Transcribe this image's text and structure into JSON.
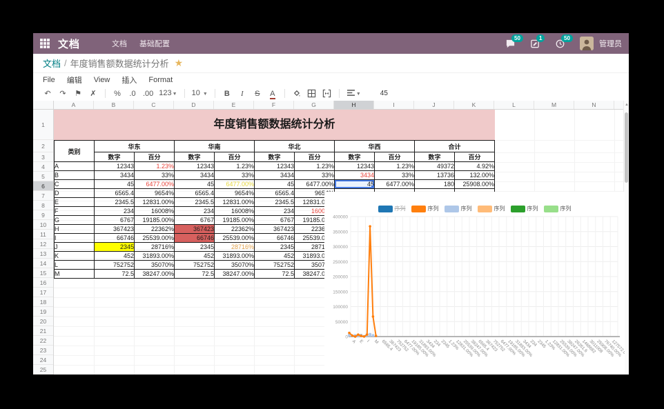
{
  "app": {
    "name": "文档",
    "menu": [
      "文档",
      "基础配置"
    ],
    "badges": [
      {
        "icon": "chat-bubble",
        "count": "50"
      },
      {
        "icon": "note",
        "count": "1"
      },
      {
        "icon": "clock",
        "count": "50"
      }
    ],
    "user_name": "管理员"
  },
  "breadcrumb": {
    "root": "文档",
    "separator": "/",
    "current": "年度销售额数据统计分析"
  },
  "menubar": {
    "items": [
      "File",
      "编辑",
      "View",
      "插入",
      "Format"
    ]
  },
  "toolbar": {
    "percent": "%",
    "dec0": ".0",
    "dec00": ".00",
    "more_formats": "123",
    "font_size": "10",
    "bold": "B",
    "italic": "I",
    "strike": "S",
    "text_color": "A",
    "cell_value": "45"
  },
  "sheet": {
    "col_headers": [
      "A",
      "B",
      "C",
      "D",
      "E",
      "F",
      "G",
      "H",
      "I",
      "J",
      "K",
      "L",
      "M",
      "N"
    ],
    "num_rows": 26,
    "selected_col": "H",
    "selected_row": 6,
    "title": "年度销售额数据统计分析",
    "table": {
      "corner_header": "类别",
      "groups": [
        "华东",
        "华南",
        "华北",
        "华西",
        "合计"
      ],
      "sub_headers": [
        "数字",
        "百分"
      ],
      "rows": [
        {
          "cat": "A",
          "cells": [
            "12343",
            {
              "v": "1.23%",
              "s": "red"
            },
            "12343",
            "1.23%",
            "12343",
            "1.23%",
            "12343",
            "1.23%",
            "49372",
            "4.92%"
          ]
        },
        {
          "cat": "B",
          "cells": [
            "3434",
            "33%",
            "3434",
            "33%",
            "3434",
            "33%",
            {
              "v": "3434",
              "s": "red"
            },
            "33%",
            "13736",
            "132.00%"
          ]
        },
        {
          "cat": "C",
          "cells": [
            "45",
            {
              "v": "6477.00%",
              "s": "red"
            },
            "45",
            {
              "v": "6477.00%",
              "s": "yellowtext"
            },
            "45",
            "6477.00%",
            {
              "v": "45",
              "s": "selected"
            },
            "6477.00%",
            "180",
            "25908.00%"
          ]
        },
        {
          "cat": "D",
          "cells": [
            "6565.4",
            "9654%",
            "6565.4",
            "9654%",
            "6565.4",
            "9654%",
            "",
            "",
            "",
            ""
          ]
        },
        {
          "cat": "E",
          "cells": [
            "2345.5",
            "12831.00%",
            "2345.5",
            "12831.00%",
            "2345.5",
            "12831.00%",
            "",
            "",
            "",
            ""
          ]
        },
        {
          "cat": "F",
          "cells": [
            "234",
            "16008%",
            "234",
            "16008%",
            "234",
            {
              "v": "16008%",
              "s": "red"
            },
            "",
            "",
            "",
            ""
          ]
        },
        {
          "cat": "G",
          "cells": [
            "6767",
            "19185.00%",
            "6767",
            "19185.00%",
            "6767",
            "19185.00%",
            "",
            "",
            "",
            ""
          ]
        },
        {
          "cat": "H",
          "cells": [
            "367423",
            "22362%",
            {
              "v": "367423",
              "s": "redbg"
            },
            "22362%",
            "367423",
            "22362%",
            "",
            "",
            "",
            ""
          ]
        },
        {
          "cat": "I",
          "cells": [
            "66746",
            "25539.00%",
            {
              "v": "66746",
              "s": "redbg"
            },
            "25539.00%",
            "66746",
            "25539.00%",
            "",
            "",
            "",
            ""
          ]
        },
        {
          "cat": "J",
          "cells": [
            {
              "v": "2345",
              "s": "yellowbg"
            },
            "28716%",
            "2345",
            {
              "v": "28716%",
              "s": "orangetext"
            },
            "2345",
            "28716%",
            "",
            "",
            "",
            ""
          ]
        },
        {
          "cat": "K",
          "cells": [
            "452",
            "31893.00%",
            "452",
            "31893.00%",
            "452",
            "31893.00%",
            "",
            "",
            "",
            ""
          ]
        },
        {
          "cat": "L",
          "cells": [
            "752752",
            "35070%",
            "752752",
            "35070%",
            "752752",
            "35070%",
            "",
            "",
            "",
            ""
          ]
        },
        {
          "cat": "M",
          "cells": [
            "72.5",
            "38247.00%",
            "72.5",
            "38247.00%",
            "72.5",
            "38247.00%",
            "",
            "",
            "",
            ""
          ]
        }
      ]
    }
  },
  "chart_data": {
    "type": "line",
    "title": "",
    "legend_position": "top",
    "grid": true,
    "legend": [
      {
        "label": "序列",
        "color": "#1f77b4",
        "disabled": true
      },
      {
        "label": "序列",
        "color": "#ff7f0e",
        "disabled": false
      },
      {
        "label": "序列",
        "color": "#aec7e8",
        "disabled": false
      },
      {
        "label": "序列",
        "color": "#ffbb78",
        "disabled": false
      },
      {
        "label": "序列",
        "color": "#2ca02c",
        "disabled": false
      },
      {
        "label": "序列",
        "color": "#98df8a",
        "disabled": false
      }
    ],
    "ylim": [
      0,
      400000
    ],
    "yticks": [
      0,
      50000,
      100000,
      150000,
      200000,
      250000,
      300000,
      350000,
      400000
    ],
    "x_labels": [
      "A",
      "E",
      "I",
      "M",
      "6565.4",
      "367423",
      "752752",
      "6477.00%",
      "19185.00%",
      "31893.00%",
      "3434",
      "234",
      "2345",
      "1.23%",
      "12831.00%",
      "25539.00%",
      "38247.00%",
      "6565.4",
      "367423",
      "752752",
      "6477.00%",
      "19185.00%",
      "31893.00%",
      "3434",
      "234",
      "2345",
      "1.23%",
      "12831.00%",
      "25539.00%",
      "38247.00%",
      "26261.6",
      "1468682",
      "3011008",
      "25908.00%",
      "76740.00%",
      "127572.00%"
    ],
    "series": [
      {
        "name": "序列",
        "type": "line",
        "color": "#ff7f0e",
        "categories": [
          "A",
          "B",
          "C",
          "D",
          "E",
          "F",
          "G",
          "H",
          "I",
          "J"
        ],
        "values": [
          12343,
          3434,
          45,
          6565.4,
          2345.5,
          234,
          6767,
          367423,
          66746,
          2345
        ]
      },
      {
        "name": "序列",
        "type": "bar",
        "color": "#aec7e8",
        "estimated": true,
        "values": [
          9000,
          5000,
          8000,
          6000,
          9000,
          5000,
          10000,
          12000,
          8000
        ]
      }
    ]
  }
}
